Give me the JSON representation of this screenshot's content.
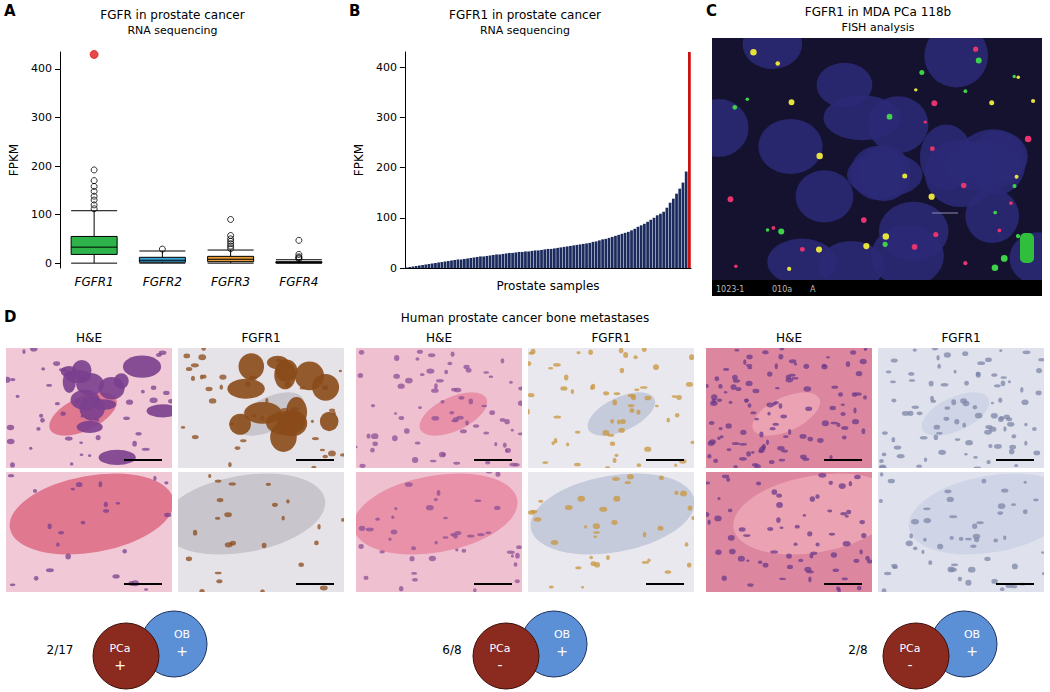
{
  "chart_data": [
    {
      "panel": "A",
      "type": "boxplot",
      "title": "FGFR in prostate cancer",
      "subtitle": "RNA sequencing",
      "y_label": "FPKM",
      "categories": [
        "FGFR1",
        "FGFR2",
        "FGFR3",
        "FGFR4"
      ],
      "series": [
        {
          "type": "boxplot",
          "colors": [
            "#2eb34a",
            "#3aa8dc",
            "#e69a3a",
            "#7b3f9e"
          ],
          "values": [
            [
              0,
              18,
              33,
              55,
              108
            ],
            [
              0,
              2,
              6,
              12,
              25
            ],
            [
              0,
              3,
              8,
              14,
              27
            ],
            [
              0,
              0.5,
              1.5,
              3,
              7
            ]
          ]
        },
        {
          "type": "scatter",
          "marker": "circle",
          "colors": [
            "#e41a1c",
            "#000000",
            "#000000",
            "#000000",
            "#000000",
            "#000000",
            "#000000",
            "#000000",
            "#000000",
            "#000000",
            "#000000",
            "#000000",
            "#000000",
            "#000000",
            "#000000",
            "#000000",
            "#000000",
            "#000000",
            "#000000",
            "#000000",
            "#000000",
            "#000000"
          ],
          "values": [
            [
              "FGFR1",
              430
            ],
            [
              "FGFR1",
              192
            ],
            [
              "FGFR1",
              170
            ],
            [
              "FGFR1",
              158
            ],
            [
              "FGFR1",
              148
            ],
            [
              "FGFR1",
              138
            ],
            [
              "FGFR1",
              130
            ],
            [
              "FGFR1",
              120
            ],
            [
              "FGFR1",
              112
            ],
            [
              "FGFR2",
              29
            ],
            [
              "FGFR3",
              30
            ],
            [
              "FGFR3",
              35
            ],
            [
              "FGFR3",
              40
            ],
            [
              "FGFR3",
              45
            ],
            [
              "FGFR3",
              50
            ],
            [
              "FGFR3",
              57
            ],
            [
              "FGFR3",
              90
            ],
            [
              "FGFR4",
              9
            ],
            [
              "FGFR4",
              11
            ],
            [
              "FGFR4",
              13
            ],
            [
              "FGFR4",
              18
            ],
            [
              "FGFR4",
              47
            ]
          ]
        }
      ],
      "ylim": [
        -10,
        435
      ],
      "yticks": [
        0,
        100,
        200,
        300,
        400
      ],
      "grid": false
    },
    {
      "panel": "B",
      "type": "bar",
      "title": "FGFR1 in prostate cancer",
      "subtitle": "RNA sequencing",
      "x_label": "Prostate samples",
      "y_label": "FPKM",
      "categories": [
        null,
        null,
        null,
        null,
        null,
        null,
        null,
        null,
        null,
        null,
        null,
        null,
        null,
        null,
        null,
        null,
        null,
        null,
        null,
        null,
        null,
        null,
        null,
        null,
        null,
        null,
        null,
        null,
        null,
        null,
        null,
        null,
        null,
        null,
        null,
        null,
        null,
        null,
        null,
        null,
        null,
        null,
        null,
        null,
        null,
        null,
        null,
        null,
        null,
        null,
        null,
        null,
        null,
        null,
        null,
        null,
        null,
        null,
        null,
        null,
        null,
        null,
        null,
        null,
        null,
        null,
        null,
        null,
        null,
        null,
        null,
        null,
        null,
        null,
        null,
        null,
        null,
        null,
        null,
        null,
        null,
        null,
        null,
        null,
        null,
        null,
        null,
        null,
        null
      ],
      "values": [
        1,
        2,
        3,
        4,
        5,
        6,
        7,
        8,
        9,
        10,
        11,
        12,
        13,
        14,
        15,
        16,
        17,
        17,
        18,
        19,
        20,
        21,
        22,
        23,
        23,
        24,
        25,
        26,
        27,
        27,
        28,
        29,
        30,
        30,
        31,
        32,
        32,
        33,
        33,
        34,
        35,
        35,
        36,
        37,
        38,
        38,
        39,
        40,
        41,
        42,
        43,
        44,
        45,
        46,
        47,
        48,
        49,
        50,
        52,
        53,
        55,
        57,
        58,
        60,
        62,
        64,
        66,
        68,
        70,
        72,
        75,
        78,
        82,
        85,
        88,
        92,
        96,
        100,
        105,
        108,
        112,
        120,
        130,
        138,
        148,
        158,
        170,
        192,
        430
      ],
      "colors": [
        "#1c2b5e",
        "#1c2b5e",
        "#1c2b5e",
        "#1c2b5e",
        "#1c2b5e",
        "#1c2b5e",
        "#1c2b5e",
        "#1c2b5e",
        "#1c2b5e",
        "#1c2b5e",
        "#1c2b5e",
        "#1c2b5e",
        "#1c2b5e",
        "#1c2b5e",
        "#1c2b5e",
        "#1c2b5e",
        "#1c2b5e",
        "#1c2b5e",
        "#1c2b5e",
        "#1c2b5e",
        "#1c2b5e",
        "#1c2b5e",
        "#1c2b5e",
        "#1c2b5e",
        "#1c2b5e",
        "#1c2b5e",
        "#1c2b5e",
        "#1c2b5e",
        "#1c2b5e",
        "#1c2b5e",
        "#1c2b5e",
        "#1c2b5e",
        "#1c2b5e",
        "#1c2b5e",
        "#1c2b5e",
        "#1c2b5e",
        "#1c2b5e",
        "#1c2b5e",
        "#1c2b5e",
        "#1c2b5e",
        "#1c2b5e",
        "#1c2b5e",
        "#1c2b5e",
        "#1c2b5e",
        "#1c2b5e",
        "#1c2b5e",
        "#1c2b5e",
        "#1c2b5e",
        "#1c2b5e",
        "#1c2b5e",
        "#1c2b5e",
        "#1c2b5e",
        "#1c2b5e",
        "#1c2b5e",
        "#1c2b5e",
        "#1c2b5e",
        "#1c2b5e",
        "#1c2b5e",
        "#1c2b5e",
        "#1c2b5e",
        "#1c2b5e",
        "#1c2b5e",
        "#1c2b5e",
        "#1c2b5e",
        "#1c2b5e",
        "#1c2b5e",
        "#1c2b5e",
        "#1c2b5e",
        "#1c2b5e",
        "#1c2b5e",
        "#1c2b5e",
        "#1c2b5e",
        "#1c2b5e",
        "#1c2b5e",
        "#1c2b5e",
        "#1c2b5e",
        "#1c2b5e",
        "#1c2b5e",
        "#1c2b5e",
        "#1c2b5e",
        "#1c2b5e",
        "#1c2b5e",
        "#1c2b5e",
        "#1c2b5e",
        "#1c2b5e",
        "#1c2b5e",
        "#1c2b5e",
        "#1c2b5e",
        "#cc1111"
      ],
      "ylim": [
        0,
        430
      ],
      "yticks": [
        0,
        100,
        200,
        300,
        400
      ],
      "grid": false,
      "tick_labels": "y"
    }
  ],
  "panel_c": {
    "panel": "C",
    "title": "FGFR1 in MDA PCa 118b",
    "subtitle": "FISH analysis",
    "image_labels": [
      "1023-1",
      "010a",
      "A"
    ]
  },
  "panel_d": {
    "panel": "D",
    "title": "Human prostate cancer bone metastases",
    "groups": [
      {
        "columns": [
          "H&E",
          "FGFR1"
        ],
        "fraction": "2/17",
        "pca": {
          "label": "PCa",
          "sign": "+"
        },
        "ob": {
          "label": "OB",
          "sign": "+"
        }
      },
      {
        "columns": [
          "H&E",
          "FGFR1"
        ],
        "fraction": "6/8",
        "pca": {
          "label": "PCa",
          "sign": "-"
        },
        "ob": {
          "label": "OB",
          "sign": "+"
        }
      },
      {
        "columns": [
          "H&E",
          "FGFR1"
        ],
        "fraction": "2/8",
        "pca": {
          "label": "PCa",
          "sign": "-"
        },
        "ob": {
          "label": "OB",
          "sign": "+"
        }
      }
    ]
  }
}
